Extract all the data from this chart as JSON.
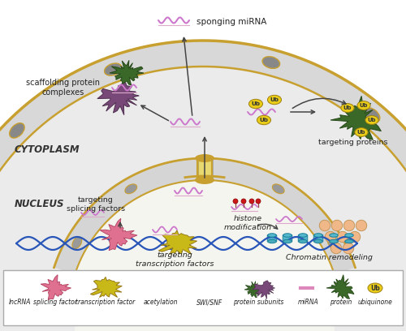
{
  "bg_color": "#ffffff",
  "membrane_border_color": "#c8a030",
  "membrane_fill_color": "#d8d8d8",
  "cytoplasm_fill": "#ebebeb",
  "nucleus_fill": "#f5f5f0",
  "lncrna_color": "#cc77cc",
  "lncrna_under_color": "#ddaacc",
  "splicing_factor_color": "#e07090",
  "transcription_factor_color": "#c8b818",
  "dna_color": "#2855b8",
  "histone_color": "#55b8cc",
  "nucleosome_color": "#f0b888",
  "ubiquitin_color": "#e8cc18",
  "acetylation_color": "#cc1818",
  "scaffold_protein_color": "#784878",
  "green_protein_color": "#3a6828",
  "miRNA_line_color": "#dd88bb",
  "arrow_color": "#444444",
  "label_color": "#222222",
  "legend_items": [
    "lncRNA",
    "splicing factor",
    "transcription factor",
    "acetylation",
    "SWI/SNF",
    "protein subunits",
    "miRNA",
    "protein",
    "ubiquinone"
  ],
  "labels": {
    "sponging_mirna": "sponging miRNA",
    "scaffolding": "scaffolding protein\ncomplexes",
    "cytoplasm": "CYTOPLASM",
    "nucleus": "NUCLEUS",
    "targeting_splicing": "targeting\nsplicing factors",
    "histone_mod": "histone\nmodification",
    "targeting_tf": "targeting\ntranscription factors",
    "chromatin": "Chromatin remodeling",
    "targeting_proteins": "targeting proteins"
  }
}
